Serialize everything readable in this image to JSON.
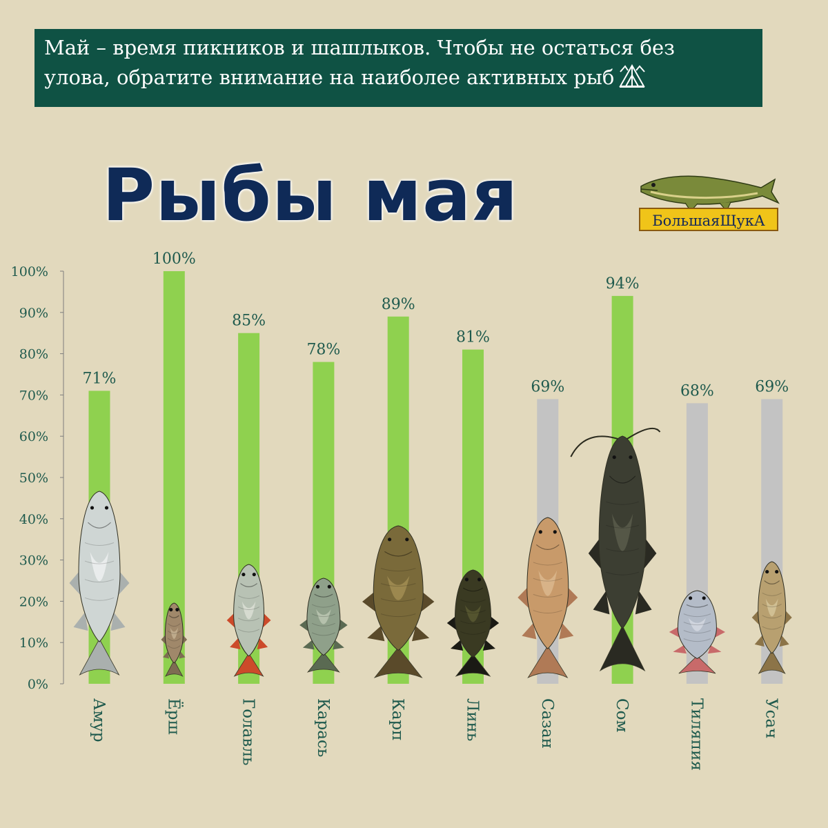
{
  "banner": {
    "line1": "Май – время пикников и шашлыков. Чтобы не остаться  без",
    "line2": "улова, обратите внимание на наиболее активных рыб"
  },
  "title": "Рыбы мая",
  "logo": {
    "text": "БольшаяЩукА"
  },
  "colors": {
    "active": "#8fd14f",
    "inactive": "#c3c3c3",
    "text": "#1f5a4d",
    "title": "#0f2a57",
    "banner": "#0f5244",
    "background": "#e2d9bd"
  },
  "chart_data": {
    "type": "bar",
    "title": "Рыбы мая",
    "xlabel": "",
    "ylabel": "",
    "ylim": [
      0,
      100
    ],
    "yticks": [
      "0%",
      "10%",
      "20%",
      "30%",
      "40%",
      "50%",
      "60%",
      "70%",
      "80%",
      "90%",
      "100%"
    ],
    "categories": [
      "Амур",
      "Ёрш",
      "Голавль",
      "Карась",
      "Карп",
      "Линь",
      "Сазан",
      "Сом",
      "Тиляпия",
      "Усач"
    ],
    "values": [
      71,
      100,
      85,
      78,
      89,
      81,
      69,
      94,
      68,
      69
    ],
    "value_labels": [
      "71%",
      "100%",
      "85%",
      "78%",
      "89%",
      "81%",
      "69%",
      "94%",
      "68%",
      "69%"
    ],
    "highlighted": [
      true,
      true,
      true,
      true,
      true,
      true,
      false,
      true,
      false,
      false
    ],
    "grid": false
  }
}
